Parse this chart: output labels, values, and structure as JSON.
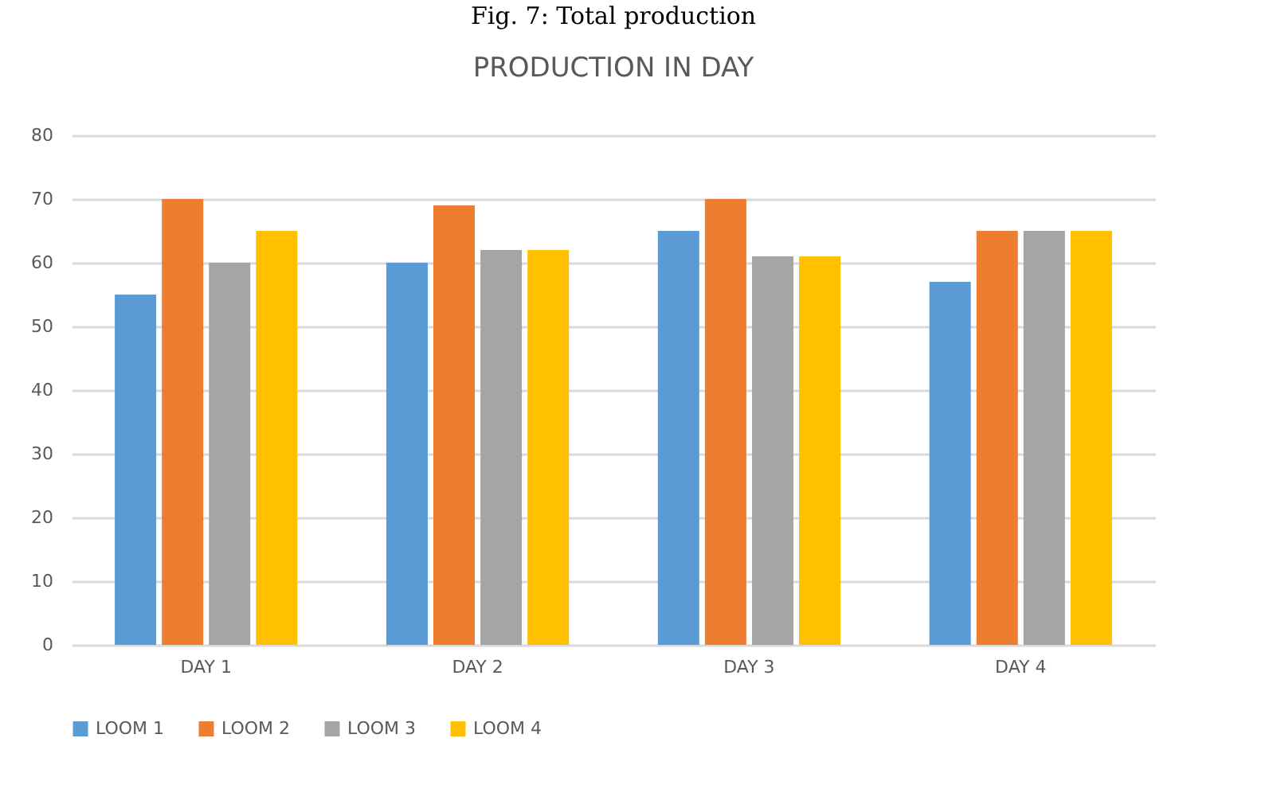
{
  "chart_data": {
    "type": "bar",
    "title": "PRODUCTION IN DAY",
    "annotations": [
      "Fig. 7: Total production"
    ],
    "categories": [
      "DAY 1",
      "DAY 2",
      "DAY 3",
      "DAY 4"
    ],
    "series": [
      {
        "name": "LOOM 1",
        "color": "#5b9bd5",
        "values": [
          55,
          60,
          65,
          57
        ]
      },
      {
        "name": "LOOM 2",
        "color": "#ed7d31",
        "values": [
          70,
          69,
          70,
          65
        ]
      },
      {
        "name": "LOOM 3",
        "color": "#a5a5a5",
        "values": [
          60,
          62,
          61,
          65
        ]
      },
      {
        "name": "LOOM 4",
        "color": "#ffc000",
        "values": [
          65,
          62,
          61,
          65
        ]
      }
    ],
    "ylim": [
      0,
      80
    ],
    "yticks": [
      0,
      10,
      20,
      30,
      40,
      50,
      60,
      70,
      80
    ],
    "grid": "y",
    "legend": "bottom"
  }
}
